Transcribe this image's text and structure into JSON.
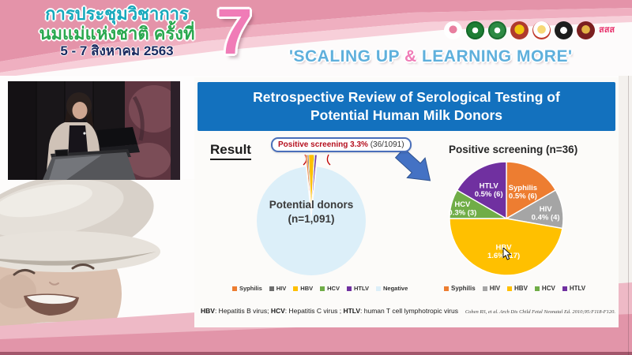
{
  "header": {
    "conference_line1": "การประชุมวิชาการ",
    "conference_line2": "นมแม่แห่งชาติ ครั้งที่",
    "date_line": "5 - 7 สิงหาคม 2563",
    "edition_number": "7",
    "tagline_left": "'SCALING UP ",
    "tagline_amp": "&",
    "tagline_right": " LEARNING MORE'",
    "logos": [
      {
        "name": "mother-and-child-foundation-logo"
      },
      {
        "name": "public-health-green-logo"
      },
      {
        "name": "breastfeeding-center-green-logo"
      },
      {
        "name": "royal-college-red-gold-crest"
      },
      {
        "name": "royal-institute-crest"
      },
      {
        "name": "medical-association-black-emblem"
      },
      {
        "name": "pediatric-society-red-emblem"
      },
      {
        "name": "thai-health-sss-logo",
        "text": "สสส"
      }
    ]
  },
  "slide": {
    "title": "Retrospective Review of Serological Testing of Potential Human Milk Donors",
    "section_label": "Result",
    "callout": {
      "highlight": "Positive screening 3.3%",
      "detail": " (36/1091)"
    },
    "footnote_segments": [
      {
        "term": "HBV",
        "rest": ": Hepatitis B virus; "
      },
      {
        "term": "HCV",
        "rest": ": Hepatitis C virus ; "
      },
      {
        "term": "HTLV",
        "rest": ": human T cell lymphotropic virus"
      }
    ],
    "citation": "Cohen RS, et al. Arch Dis Child Fetal Neonatal Ed. 2010;95:F118-F120."
  },
  "chart_data": [
    {
      "type": "pie",
      "name": "potential-donors-pie",
      "title": "Potential donors (n=1,091)",
      "center_label_line1": "Potential donors",
      "center_label_line2": "(n=1,091)",
      "categories": [
        "Syphilis",
        "HIV",
        "HBV",
        "HCV",
        "HTLV",
        "Negative"
      ],
      "values": [
        6,
        4,
        17,
        3,
        6,
        1055
      ],
      "total": 1091,
      "colors": [
        "#ED7D31",
        "#6E6E6E",
        "#FFC000",
        "#70AD47",
        "#7030A0",
        "#DCEFF9"
      ],
      "annotation": "Positive screening 3.3% (36/1091)",
      "legend_position": "bottom",
      "exploded_group": "positive slices exploded toward top"
    },
    {
      "type": "pie",
      "name": "positive-screening-pie",
      "title": "Positive screening (n=36)",
      "categories": [
        "Syphilis",
        "HIV",
        "HBV",
        "HCV",
        "HTLV"
      ],
      "values": [
        6,
        4,
        17,
        3,
        6
      ],
      "total": 36,
      "slice_label_values": [
        "0.5% (6)",
        "0.4% (4)",
        "1.6% (17)",
        "0.3% (3)",
        "0.5% (6)"
      ],
      "colors": [
        "#ED7D31",
        "#A5A5A5",
        "#FFC000",
        "#70AD47",
        "#7030A0"
      ],
      "legend_position": "bottom"
    }
  ],
  "colors": {
    "title_bar_blue": "#1371BE",
    "callout_border_blue": "#4A6FBA",
    "callout_text_red": "#B50F1E",
    "flow_arrow_blue": "#4472C4",
    "header_pink_dark": "#E493A9",
    "header_pink_mid": "#EFAFC0",
    "header_pink_light": "#F7CFD9",
    "accent_pink": "#F07CB7",
    "tagline_blue": "#5FB0DC",
    "thai_teal": "#17A9BC",
    "thai_green": "#2AA84F",
    "thai_navy": "#1B2A60",
    "footer_pink_light": "#EEB9C6",
    "footer_pink_dark": "#E295A9"
  }
}
